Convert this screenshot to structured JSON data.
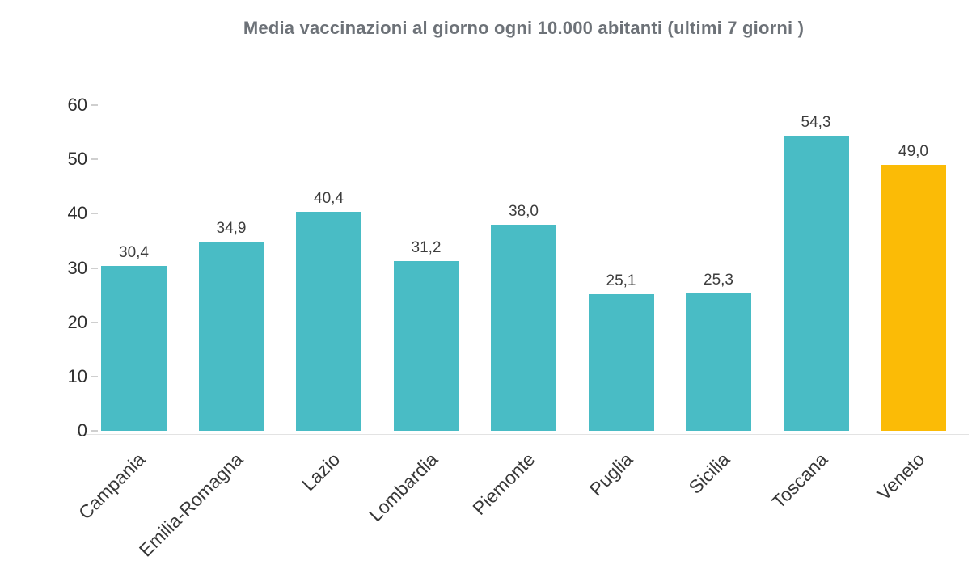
{
  "chart_data": {
    "type": "bar",
    "title": "Media vaccinazioni al giorno ogni 10.000 abitanti (ultimi 7 giorni )",
    "categories": [
      "Campania",
      "Emilia-Romagna",
      "Lazio",
      "Lombardia",
      "Piemonte",
      "Puglia",
      "Sicilia",
      "Toscana",
      "Veneto"
    ],
    "values": [
      30.4,
      34.9,
      40.4,
      31.2,
      38.0,
      25.1,
      25.3,
      54.3,
      49.0
    ],
    "value_labels": [
      "30,4",
      "34,9",
      "40,4",
      "31,2",
      "38,0",
      "25,1",
      "25,3",
      "54,3",
      "49,0"
    ],
    "xlabel": "",
    "ylabel": "",
    "ylim": [
      0,
      60
    ],
    "yticks": [
      0,
      10,
      20,
      30,
      40,
      50,
      60
    ],
    "grid": false,
    "legend": "none",
    "bar_color": "#49BCC5",
    "highlight_color": "#FBBB06",
    "highlight_category": "Veneto",
    "title_color": "#6D7278"
  }
}
